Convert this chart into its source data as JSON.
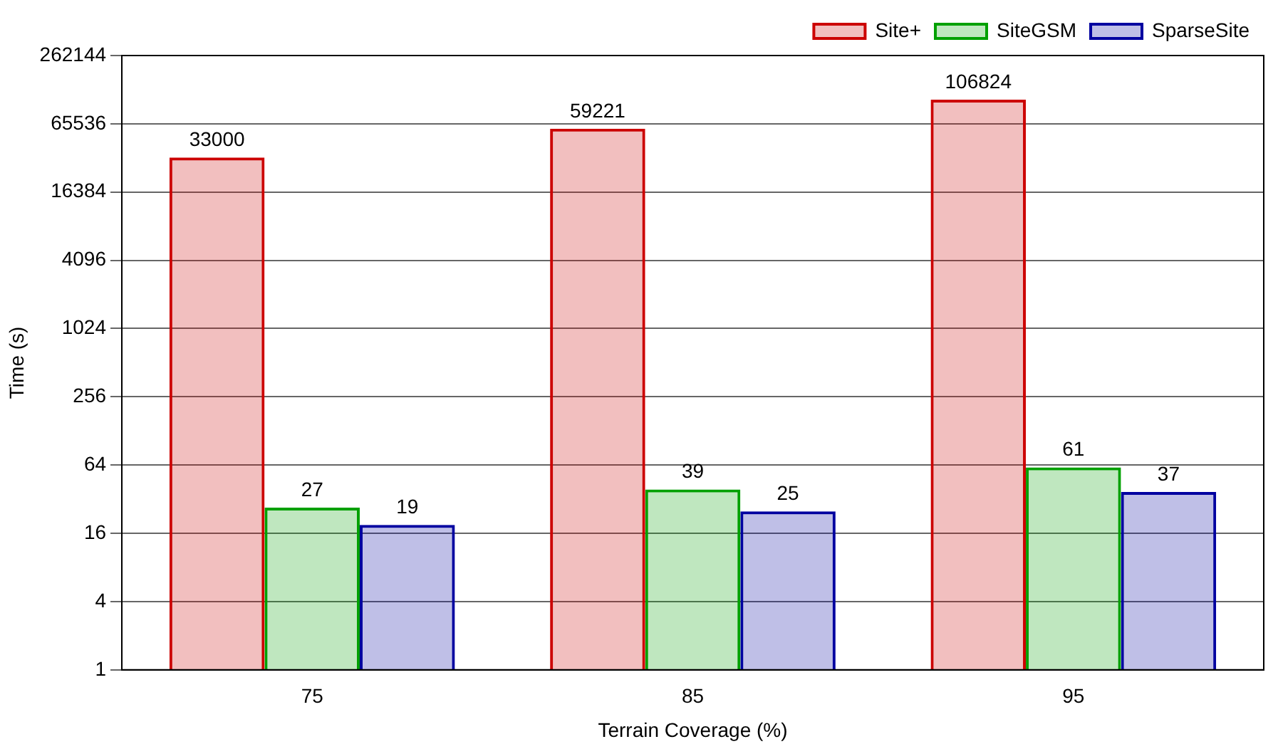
{
  "chart_data": {
    "type": "bar",
    "xlabel": "Terrain Coverage (%)",
    "ylabel": "Time (s)",
    "categories": [
      "75",
      "85",
      "95"
    ],
    "series": [
      {
        "name": "Site+",
        "color": "#cc0000",
        "values": [
          33000,
          59221,
          106824
        ]
      },
      {
        "name": "SiteGSM",
        "color": "#00a000",
        "values": [
          27,
          39,
          61
        ]
      },
      {
        "name": "SparseSite",
        "color": "#0000a0",
        "values": [
          19,
          25,
          37
        ]
      }
    ],
    "log": "y",
    "ylim": [
      1,
      262144
    ],
    "yticks": [
      1,
      4,
      16,
      64,
      256,
      1024,
      4096,
      16384,
      65536,
      262144
    ],
    "grid": "y",
    "legend": "top right",
    "data_labels": true
  }
}
